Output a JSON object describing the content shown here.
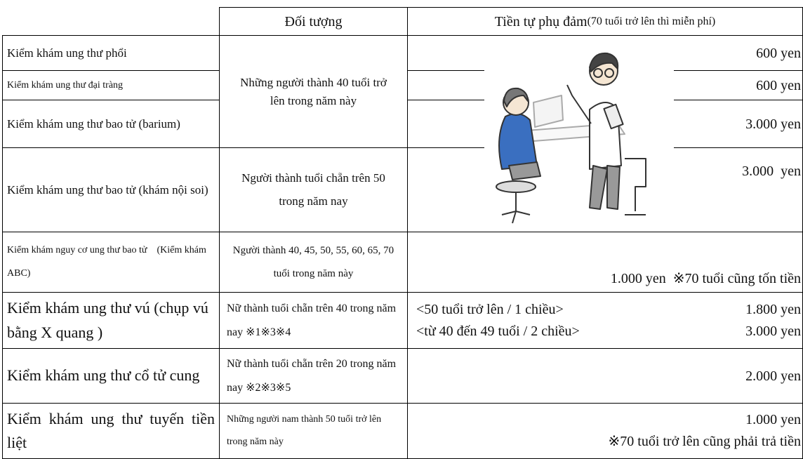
{
  "table": {
    "header": {
      "target": "Đối tượng",
      "fee": "Tiền tự phụ đảm",
      "fee_note": "(70 tuổi trở lên thì miễn phí)"
    },
    "rows": [
      {
        "name": "Kiểm khám ung thư phổi",
        "fee": "600 yen"
      },
      {
        "name": "Kiểm khám ung thư đại tràng",
        "fee": "600 yen"
      },
      {
        "name": "Kiểm khám ung thư bao tử (barium)",
        "fee": "3.000 yen"
      },
      {
        "name": "Kiểm khám ung thư bao tử (khám nội soi)",
        "target": "Người thành tuổi chẵn trên 50 trong năm nay",
        "fee": "3.000  yen"
      },
      {
        "name": "Kiểm khám nguy cơ ung thư bao tử　(Kiểm khám ABC)",
        "target": "Người thành 40, 45, 50, 55, 60, 65, 70 tuổi trong năm này",
        "fee": "1.000 yen  ※70 tuổi cũng tốn tiền"
      },
      {
        "name": "Kiểm khám ung thư vú (chụp vú bằng X quang )",
        "target": "Nữ thành tuổi chẵn trên 40 trong năm nay ※1※3※4",
        "fee_lines": [
          {
            "label": "<50 tuổi trở lên / 1 chiều>",
            "price": "1.800 yen"
          },
          {
            "label": "<từ 40 đến 49 tuổi / 2 chiều>",
            "price": "3.000 yen"
          }
        ]
      },
      {
        "name": "Kiểm khám ung thư cổ tử cung",
        "target": "Nữ thành tuổi chẵn trên 20 trong năm nay ※2※3※5",
        "fee": "2.000 yen"
      },
      {
        "name": "Kiểm khám ung thư tuyến tiền liệt",
        "target": "Những người nam thành 50 tuổi trở lên trong năm này",
        "fee_lines": [
          {
            "price": "1.000 yen"
          },
          {
            "price": "※70 tuổi trở lên cũng phải trả tiền"
          }
        ]
      }
    ],
    "shared_target_rows_1_3": "Những người thành 40 tuổi trở lên trong năm này"
  }
}
